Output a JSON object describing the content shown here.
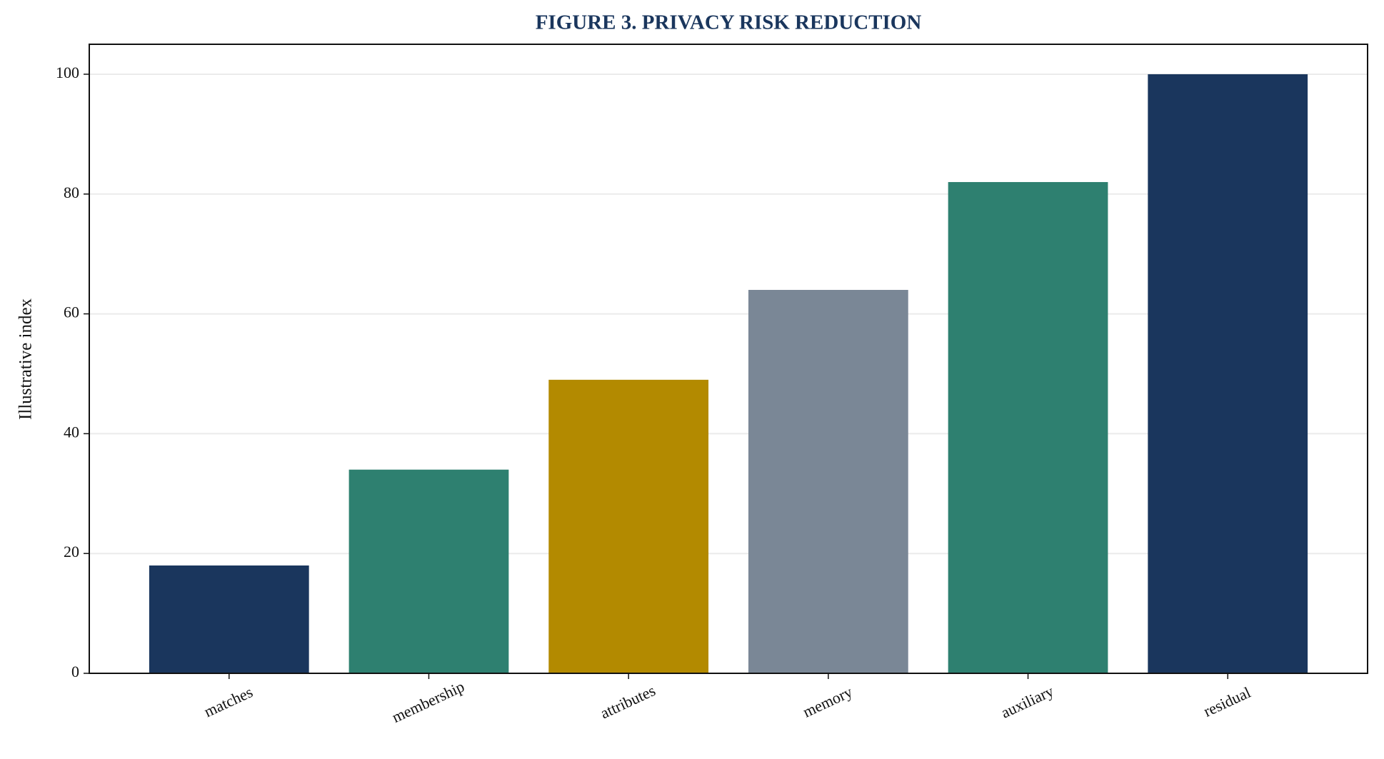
{
  "chart_data": {
    "type": "bar",
    "title": "FIGURE 3. PRIVACY RISK REDUCTION",
    "y_label": "Illustrative index",
    "categories": [
      "matches",
      "membership",
      "attributes",
      "memory",
      "auxiliary",
      "residual"
    ],
    "values": [
      18,
      34,
      49,
      64,
      82,
      100
    ],
    "colors": [
      "#1a365d",
      "#2e8070",
      "#b38a00",
      "#7a8796",
      "#2e8070",
      "#1a365d"
    ],
    "ylim": [
      0,
      105
    ],
    "yticks": [
      0,
      20,
      40,
      60,
      80,
      100
    ],
    "grid": true
  }
}
